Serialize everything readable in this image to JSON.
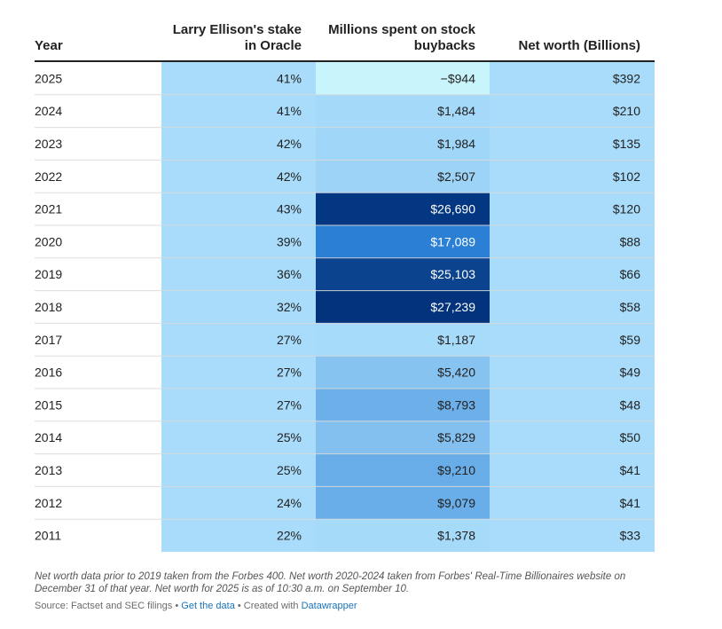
{
  "chart_data": {
    "type": "table",
    "columns": [
      "Year",
      "Larry Ellison's stake in Oracle",
      "Millions spent on stock buybacks",
      "Net worth (Billions)"
    ],
    "header_lines": [
      [
        "Year"
      ],
      [
        "Larry Ellison's stake",
        "in Oracle"
      ],
      [
        "Millions spent on stock",
        "buybacks"
      ],
      [
        "Net worth (Billions)"
      ]
    ],
    "rows": [
      {
        "year": "2025",
        "stake": "41%",
        "buyback": "−$944",
        "buyback_value": -944,
        "net_worth": "$392"
      },
      {
        "year": "2024",
        "stake": "41%",
        "buyback": "$1,484",
        "buyback_value": 1484,
        "net_worth": "$210"
      },
      {
        "year": "2023",
        "stake": "42%",
        "buyback": "$1,984",
        "buyback_value": 1984,
        "net_worth": "$135"
      },
      {
        "year": "2022",
        "stake": "42%",
        "buyback": "$2,507",
        "buyback_value": 2507,
        "net_worth": "$102"
      },
      {
        "year": "2021",
        "stake": "43%",
        "buyback": "$26,690",
        "buyback_value": 26690,
        "net_worth": "$120"
      },
      {
        "year": "2020",
        "stake": "39%",
        "buyback": "$17,089",
        "buyback_value": 17089,
        "net_worth": "$88"
      },
      {
        "year": "2019",
        "stake": "36%",
        "buyback": "$25,103",
        "buyback_value": 25103,
        "net_worth": "$66"
      },
      {
        "year": "2018",
        "stake": "32%",
        "buyback": "$27,239",
        "buyback_value": 27239,
        "net_worth": "$58"
      },
      {
        "year": "2017",
        "stake": "27%",
        "buyback": "$1,187",
        "buyback_value": 1187,
        "net_worth": "$59"
      },
      {
        "year": "2016",
        "stake": "27%",
        "buyback": "$5,420",
        "buyback_value": 5420,
        "net_worth": "$49"
      },
      {
        "year": "2015",
        "stake": "27%",
        "buyback": "$8,793",
        "buyback_value": 8793,
        "net_worth": "$48"
      },
      {
        "year": "2014",
        "stake": "25%",
        "buyback": "$5,829",
        "buyback_value": 5829,
        "net_worth": "$50"
      },
      {
        "year": "2013",
        "stake": "25%",
        "buyback": "$9,210",
        "buyback_value": 9210,
        "net_worth": "$41"
      },
      {
        "year": "2012",
        "stake": "24%",
        "buyback": "$9,079",
        "buyback_value": 9079,
        "net_worth": "$41"
      },
      {
        "year": "2011",
        "stake": "22%",
        "buyback": "$1,378",
        "buyback_value": 1378,
        "net_worth": "$33"
      }
    ],
    "colors": {
      "cell_default": "#a8dcfa",
      "negative": "#c8f4fb",
      "scale_light": "#a8dcfa",
      "scale_mid": "#2a7fd6",
      "scale_dark": "#02337c",
      "header_rule": "#222222",
      "row_rule": "#d9d9d9"
    }
  },
  "footnote": "Net worth data prior to 2019 taken from the Forbes 400. Net worth 2020-2024 taken from Forbes' Real-Time Billionaires website on December 31 of that year. Net worth for 2025 is as of 10:30 a.m. on September 10.",
  "footer": {
    "source": "Source: Factset and SEC filings",
    "sep1": " • ",
    "get_data": "Get the data",
    "sep2": " • Created with ",
    "datawrapper": "Datawrapper"
  }
}
